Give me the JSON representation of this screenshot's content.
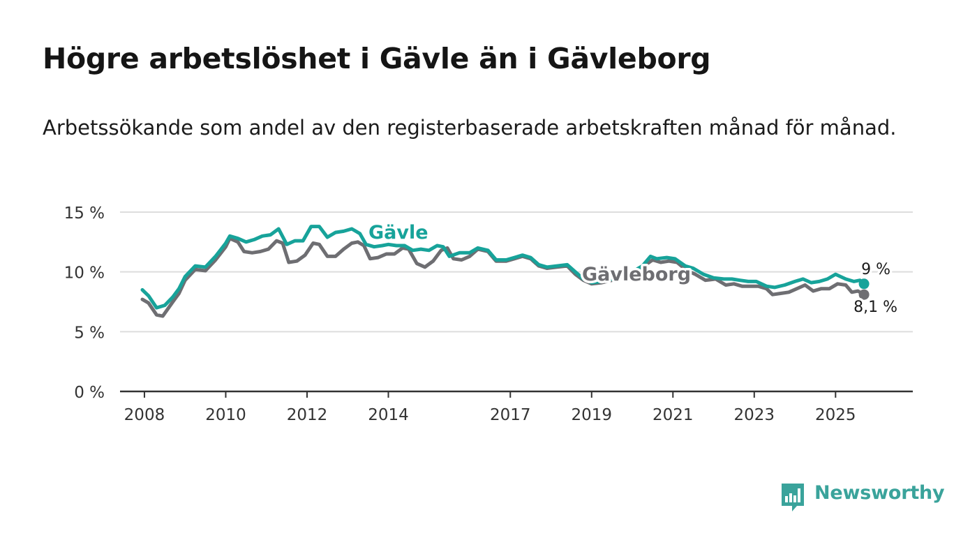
{
  "title": "Högre arbetslöshet i Gävle än i Gävleborg",
  "subtitle": "Arbetssökande som andel av den registerbaserade arbetskraften månad för månad.",
  "brand": {
    "name": "Newsworthy",
    "color": "#3aa39b"
  },
  "colors": {
    "gavle": "#17a39a",
    "gavleborg": "#6e6e72",
    "grid": "#dddddd",
    "axis": "#333333"
  },
  "chart_data": {
    "type": "line",
    "title": "Högre arbetslöshet i Gävle än i Gävleborg",
    "xlabel": "",
    "ylabel": "",
    "ylim": [
      0,
      15
    ],
    "xlim": [
      2007.95,
      2026.4
    ],
    "yticks": [
      {
        "value": 0,
        "label": "0 %"
      },
      {
        "value": 5,
        "label": "5 %"
      },
      {
        "value": 10,
        "label": "10 %"
      },
      {
        "value": 15,
        "label": "15 %"
      }
    ],
    "xticks": [
      {
        "value": 2008.0,
        "label": "2008"
      },
      {
        "value": 2010.0,
        "label": "2010"
      },
      {
        "value": 2012.0,
        "label": "2012"
      },
      {
        "value": 2014.0,
        "label": "2014"
      },
      {
        "value": 2017.0,
        "label": "2017"
      },
      {
        "value": 2019.0,
        "label": "2019"
      },
      {
        "value": 2021.0,
        "label": "2021"
      },
      {
        "value": 2023.0,
        "label": "2023"
      },
      {
        "value": 2025.0,
        "label": "2025"
      }
    ],
    "grid": true,
    "series": [
      {
        "name": "Gävle",
        "label": "Gävle",
        "end_label": "9 %",
        "points": [
          [
            2007.95,
            8.5
          ],
          [
            2008.1,
            8.0
          ],
          [
            2008.3,
            7.0
          ],
          [
            2008.5,
            7.2
          ],
          [
            2008.7,
            7.9
          ],
          [
            2008.85,
            8.6
          ],
          [
            2009.0,
            9.6
          ],
          [
            2009.25,
            10.5
          ],
          [
            2009.5,
            10.4
          ],
          [
            2009.75,
            11.3
          ],
          [
            2010.0,
            12.4
          ],
          [
            2010.1,
            13.0
          ],
          [
            2010.3,
            12.8
          ],
          [
            2010.5,
            12.5
          ],
          [
            2010.7,
            12.7
          ],
          [
            2010.9,
            13.0
          ],
          [
            2011.1,
            13.1
          ],
          [
            2011.3,
            13.6
          ],
          [
            2011.5,
            12.3
          ],
          [
            2011.7,
            12.6
          ],
          [
            2011.9,
            12.6
          ],
          [
            2012.1,
            13.8
          ],
          [
            2012.3,
            13.8
          ],
          [
            2012.5,
            12.9
          ],
          [
            2012.7,
            13.3
          ],
          [
            2012.9,
            13.4
          ],
          [
            2013.1,
            13.6
          ],
          [
            2013.3,
            13.2
          ],
          [
            2013.45,
            12.3
          ],
          [
            2013.65,
            12.1
          ],
          [
            2013.85,
            12.2
          ],
          [
            2014.0,
            12.3
          ],
          [
            2014.2,
            12.2
          ],
          [
            2014.4,
            12.2
          ],
          [
            2014.6,
            11.8
          ],
          [
            2014.8,
            11.9
          ],
          [
            2015.0,
            11.8
          ],
          [
            2015.2,
            12.2
          ],
          [
            2015.35,
            12.1
          ],
          [
            2015.5,
            11.3
          ],
          [
            2015.75,
            11.6
          ],
          [
            2016.0,
            11.6
          ],
          [
            2016.2,
            12.0
          ],
          [
            2016.45,
            11.8
          ],
          [
            2016.65,
            11.0
          ],
          [
            2016.9,
            11.0
          ],
          [
            2017.1,
            11.2
          ],
          [
            2017.3,
            11.4
          ],
          [
            2017.5,
            11.2
          ],
          [
            2017.7,
            10.6
          ],
          [
            2017.9,
            10.4
          ],
          [
            2018.15,
            10.5
          ],
          [
            2018.4,
            10.6
          ],
          [
            2018.6,
            10.0
          ],
          [
            2018.8,
            9.4
          ],
          [
            2019.0,
            9.1
          ],
          [
            2019.25,
            9.2
          ],
          [
            2019.5,
            9.4
          ],
          [
            2019.75,
            9.7
          ],
          [
            2020.0,
            10.0
          ],
          [
            2020.25,
            10.5
          ],
          [
            2020.45,
            11.3
          ],
          [
            2020.6,
            11.1
          ],
          [
            2020.85,
            11.2
          ],
          [
            2021.05,
            11.1
          ],
          [
            2021.3,
            10.5
          ],
          [
            2021.5,
            10.3
          ],
          [
            2021.75,
            9.8
          ],
          [
            2022.0,
            9.5
          ],
          [
            2022.25,
            9.4
          ],
          [
            2022.45,
            9.4
          ],
          [
            2022.65,
            9.3
          ],
          [
            2022.85,
            9.2
          ],
          [
            2023.05,
            9.2
          ],
          [
            2023.3,
            8.8
          ],
          [
            2023.5,
            8.7
          ],
          [
            2023.75,
            8.9
          ],
          [
            2024.0,
            9.2
          ],
          [
            2024.2,
            9.4
          ],
          [
            2024.4,
            9.1
          ],
          [
            2024.6,
            9.2
          ],
          [
            2024.8,
            9.4
          ],
          [
            2025.0,
            9.8
          ],
          [
            2025.25,
            9.4
          ],
          [
            2025.45,
            9.2
          ],
          [
            2025.6,
            9.3
          ],
          [
            2025.7,
            9.0
          ]
        ]
      },
      {
        "name": "Gävleborg",
        "label": "Gävleborg",
        "end_label": "8,1 %",
        "points": [
          [
            2007.95,
            7.7
          ],
          [
            2008.1,
            7.4
          ],
          [
            2008.3,
            6.4
          ],
          [
            2008.45,
            6.3
          ],
          [
            2008.7,
            7.5
          ],
          [
            2008.85,
            8.2
          ],
          [
            2009.0,
            9.3
          ],
          [
            2009.25,
            10.2
          ],
          [
            2009.5,
            10.1
          ],
          [
            2009.75,
            11.0
          ],
          [
            2010.0,
            12.1
          ],
          [
            2010.1,
            12.8
          ],
          [
            2010.3,
            12.5
          ],
          [
            2010.45,
            11.7
          ],
          [
            2010.65,
            11.6
          ],
          [
            2010.85,
            11.7
          ],
          [
            2011.05,
            11.9
          ],
          [
            2011.25,
            12.6
          ],
          [
            2011.4,
            12.4
          ],
          [
            2011.55,
            10.8
          ],
          [
            2011.75,
            10.9
          ],
          [
            2011.95,
            11.4
          ],
          [
            2012.15,
            12.4
          ],
          [
            2012.3,
            12.3
          ],
          [
            2012.5,
            11.3
          ],
          [
            2012.7,
            11.3
          ],
          [
            2012.9,
            11.9
          ],
          [
            2013.1,
            12.4
          ],
          [
            2013.25,
            12.5
          ],
          [
            2013.4,
            12.2
          ],
          [
            2013.55,
            11.1
          ],
          [
            2013.75,
            11.2
          ],
          [
            2013.95,
            11.5
          ],
          [
            2014.15,
            11.5
          ],
          [
            2014.35,
            12.0
          ],
          [
            2014.5,
            11.9
          ],
          [
            2014.7,
            10.7
          ],
          [
            2014.9,
            10.4
          ],
          [
            2015.1,
            10.9
          ],
          [
            2015.3,
            11.8
          ],
          [
            2015.45,
            12.0
          ],
          [
            2015.6,
            11.1
          ],
          [
            2015.8,
            11.0
          ],
          [
            2016.0,
            11.3
          ],
          [
            2016.2,
            11.9
          ],
          [
            2016.45,
            11.7
          ],
          [
            2016.65,
            10.9
          ],
          [
            2016.9,
            10.9
          ],
          [
            2017.1,
            11.1
          ],
          [
            2017.3,
            11.3
          ],
          [
            2017.5,
            11.1
          ],
          [
            2017.7,
            10.5
          ],
          [
            2017.9,
            10.3
          ],
          [
            2018.15,
            10.4
          ],
          [
            2018.4,
            10.5
          ],
          [
            2018.6,
            9.8
          ],
          [
            2018.8,
            9.3
          ],
          [
            2019.0,
            9.0
          ],
          [
            2019.25,
            9.1
          ],
          [
            2019.5,
            9.3
          ],
          [
            2019.75,
            9.6
          ],
          [
            2020.0,
            10.0
          ],
          [
            2020.25,
            10.4
          ],
          [
            2020.5,
            11.0
          ],
          [
            2020.7,
            10.8
          ],
          [
            2020.9,
            10.9
          ],
          [
            2021.1,
            10.8
          ],
          [
            2021.35,
            10.1
          ],
          [
            2021.55,
            9.8
          ],
          [
            2021.8,
            9.3
          ],
          [
            2022.05,
            9.4
          ],
          [
            2022.3,
            8.9
          ],
          [
            2022.5,
            9.0
          ],
          [
            2022.7,
            8.8
          ],
          [
            2022.9,
            8.8
          ],
          [
            2023.1,
            8.8
          ],
          [
            2023.3,
            8.6
          ],
          [
            2023.45,
            8.1
          ],
          [
            2023.65,
            8.2
          ],
          [
            2023.85,
            8.3
          ],
          [
            2024.05,
            8.6
          ],
          [
            2024.25,
            8.9
          ],
          [
            2024.45,
            8.4
          ],
          [
            2024.65,
            8.6
          ],
          [
            2024.85,
            8.6
          ],
          [
            2025.05,
            9.0
          ],
          [
            2025.25,
            8.9
          ],
          [
            2025.4,
            8.3
          ],
          [
            2025.55,
            8.4
          ],
          [
            2025.7,
            8.1
          ]
        ]
      }
    ],
    "annotations": [
      {
        "series": "Gävle",
        "text": "9 %"
      },
      {
        "series": "Gävleborg",
        "text": "8,1 %"
      }
    ]
  }
}
